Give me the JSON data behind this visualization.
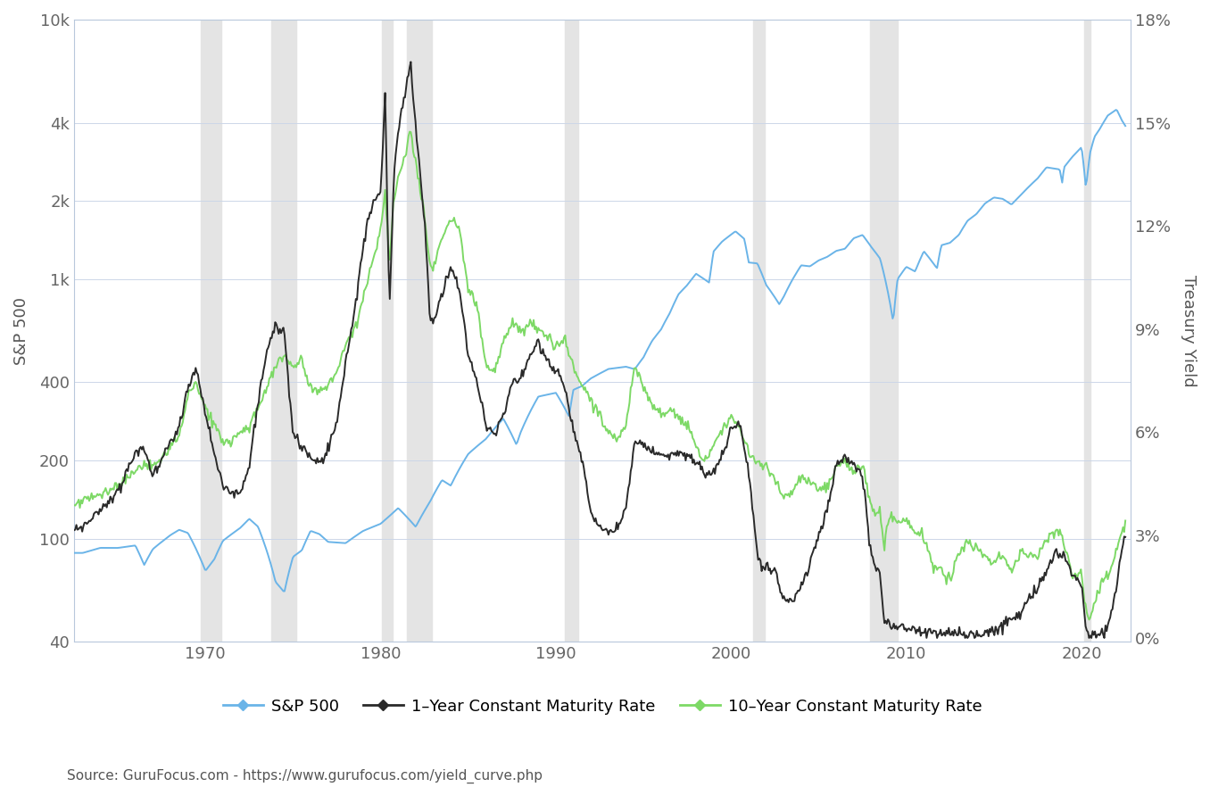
{
  "source_text": "Source: GuruFocus.com - https://www.gurufocus.com/yield_curve.php",
  "sp500_color": "#6ab4e8",
  "yield1y_color": "#2a2a2a",
  "yield10y_color": "#7dd966",
  "background_color": "#ffffff",
  "plot_bg_color": "#ffffff",
  "grid_color": "#ccd6e8",
  "recession_color": "#e4e4e4",
  "sp500_label": "S&P 500",
  "yield1y_label": "1–Year Constant Maturity Rate",
  "yield10y_label": "10–Year Constant Maturity Rate",
  "ylabel_left": "S&P 500",
  "ylabel_right": "Treasury Yield",
  "recession_bands": [
    [
      1969.75,
      1970.92
    ],
    [
      1973.75,
      1975.17
    ],
    [
      1980.08,
      1980.67
    ],
    [
      1981.5,
      1982.92
    ],
    [
      1990.5,
      1991.25
    ],
    [
      2001.25,
      2001.92
    ],
    [
      2007.92,
      2009.5
    ],
    [
      2020.17,
      2020.5
    ]
  ],
  "xticks": [
    1970,
    1980,
    1990,
    2000,
    2010,
    2020
  ],
  "yticks_left": [
    40,
    100,
    200,
    400,
    1000,
    2000,
    4000,
    10000
  ],
  "ytick_labels_left": [
    "40",
    "100",
    "200",
    "400",
    "1k",
    "2k",
    "4k",
    "10k"
  ],
  "yticks_right": [
    0,
    0.03,
    0.06,
    0.09,
    0.12,
    0.15,
    0.18
  ],
  "ytick_labels_right": [
    "0%",
    "3%",
    "6%",
    "9%",
    "12%",
    "15%",
    "18%"
  ],
  "ylim_left": [
    40,
    10000
  ],
  "ylim_right": [
    -0.001,
    0.18
  ],
  "xlim": [
    1962.5,
    2022.8
  ]
}
